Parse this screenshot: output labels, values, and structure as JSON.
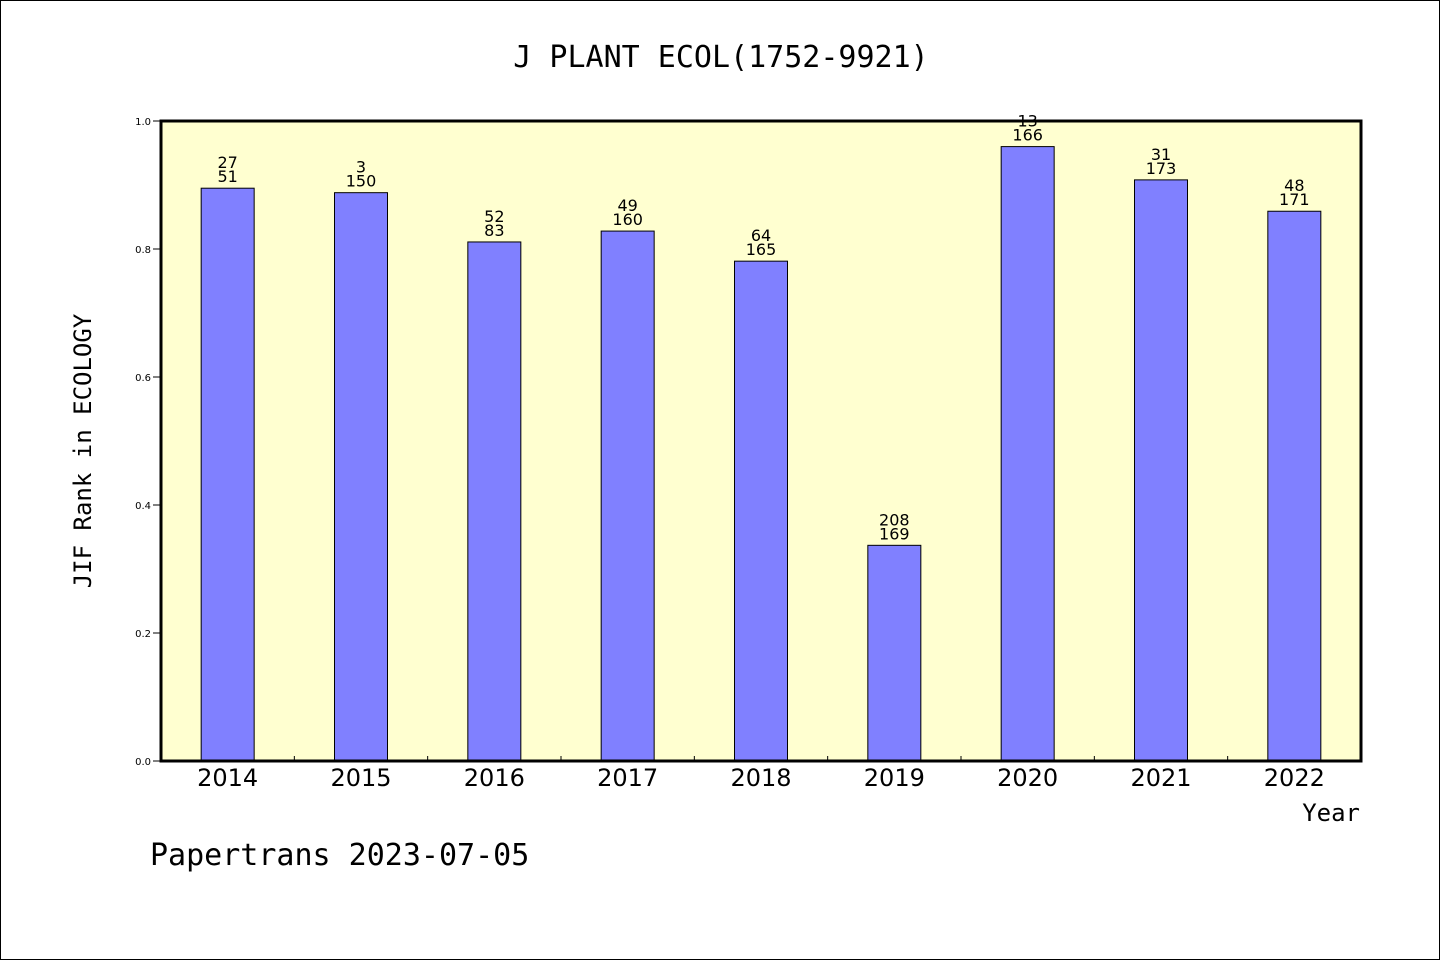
{
  "chart_data": {
    "type": "bar",
    "title": "J PLANT ECOL(1752-9921)",
    "xlabel": "Year",
    "ylabel": "JIF Rank in ECOLOGY",
    "ylim": [
      0,
      1.0
    ],
    "yticks": [
      "0.0",
      "0.2",
      "0.4",
      "0.6",
      "0.8",
      "1.0"
    ],
    "grid": false,
    "categories": [
      "2014",
      "2015",
      "2016",
      "2017",
      "2018",
      "2019",
      "2020",
      "2021",
      "2022"
    ],
    "values": [
      0.895,
      0.888,
      0.811,
      0.828,
      0.781,
      0.337,
      0.96,
      0.908,
      0.859
    ],
    "labels_top": [
      "27",
      "3",
      "52",
      "49",
      "64",
      "208",
      "13",
      "31",
      "48"
    ],
    "labels_bottom": [
      "51",
      "150",
      "83",
      "160",
      "165",
      "169",
      "166",
      "173",
      "171"
    ],
    "colors": {
      "bar": "#8080ff",
      "plot_bg": "#ffffd0",
      "axis": "#000000"
    }
  },
  "footer": "Papertrans 2023-07-05"
}
